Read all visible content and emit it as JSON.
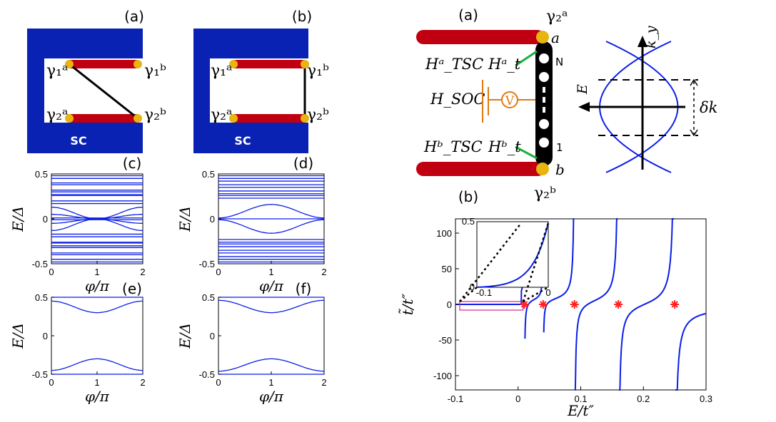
{
  "colors": {
    "superconductor": "#0a22b4",
    "wire": "#c00010",
    "majorana": "#e8b410",
    "curve": "#0a1ee6",
    "zero_marker": "#ff2020",
    "soc_circuit": "#e07a10",
    "coupling": "#1bb040",
    "inset_box": "#e0208a"
  },
  "left": {
    "panel_a": {
      "label": "(a)",
      "sc_label": "SC",
      "gammas": [
        "γ₁ᵃ",
        "γ₁ᵇ",
        "γ₂ᵃ",
        "γ₂ᵇ"
      ],
      "connection": "diagonal"
    },
    "panel_b": {
      "label": "(b)",
      "sc_label": "SC",
      "gammas": [
        "γ₁ᵃ",
        "γ₁ᵇ",
        "γ₂ᵃ",
        "γ₂ᵇ"
      ],
      "connection": "vertical"
    },
    "panel_c": {
      "label": "(c)"
    },
    "panel_d": {
      "label": "(d)"
    },
    "panel_e": {
      "label": "(e)"
    },
    "panel_f": {
      "label": "(f)"
    }
  },
  "right": {
    "schematic": {
      "label": "(a)",
      "gamma_top": "γ₂ᵃ",
      "gamma_bottom": "γ₂ᵇ",
      "end_top": "a",
      "end_bottom": "b",
      "site_top": "N",
      "site_bottom": "1",
      "H_tsc_a": "Hᵃ_TSC",
      "H_t_a": "Hᵃ_t",
      "H_soc": "H_SOC",
      "H_tsc_b": "Hᵇ_TSC",
      "H_t_b": "Hᵇ_t",
      "voltage_symbol": "V",
      "band_axis_y": "k_y",
      "band_axis_e": "E",
      "delta_k": "δk"
    },
    "plot_b_label": "(b)"
  },
  "chart_data": [
    {
      "id": "c",
      "type": "line",
      "xlabel": "φ/π",
      "ylabel": "E/Δ",
      "x_ticks": [
        "0",
        "1",
        "2"
      ],
      "y_ticks": [
        "0.5",
        "0",
        "-0.5"
      ],
      "xlim": [
        0,
        2
      ],
      "ylim": [
        -0.5,
        0.5
      ],
      "flat_levels": [
        0.48,
        0.45,
        0.4,
        0.38,
        0.32,
        0.3,
        0.27,
        0.26,
        0.2,
        0.17,
        0.01,
        -0.01,
        -0.17,
        -0.2,
        -0.26,
        -0.27,
        -0.3,
        -0.32,
        -0.38,
        -0.4,
        -0.45,
        -0.48
      ],
      "series": [
        {
          "values_at_phi0_1_2": [
            0.13,
            0.0,
            0.13
          ]
        },
        {
          "values_at_phi0_1_2": [
            -0.13,
            0.0,
            -0.13
          ]
        },
        {
          "values_at_phi0_1_2": [
            0.05,
            0.0,
            0.05
          ]
        },
        {
          "values_at_phi0_1_2": [
            -0.05,
            0.0,
            -0.05
          ]
        }
      ]
    },
    {
      "id": "d",
      "type": "line",
      "xlabel": "φ/π",
      "ylabel": "E/Δ",
      "x_ticks": [
        "0",
        "1",
        "2"
      ],
      "y_ticks": [
        "0.5",
        "0",
        "-0.5"
      ],
      "xlim": [
        0,
        2
      ],
      "ylim": [
        -0.5,
        0.5
      ],
      "flat_levels": [
        0.48,
        0.45,
        0.42,
        0.38,
        0.35,
        0.31,
        0.28,
        0.26,
        0.23,
        0.0,
        -0.23,
        -0.26,
        -0.28,
        -0.31,
        -0.35,
        -0.38,
        -0.42,
        -0.45,
        -0.48
      ],
      "series": [
        {
          "values_at_phi0_1_2": [
            0.01,
            0.16,
            0.01
          ]
        },
        {
          "values_at_phi0_1_2": [
            -0.01,
            -0.16,
            -0.01
          ]
        }
      ]
    },
    {
      "id": "e",
      "type": "line",
      "xlabel": "φ/π",
      "ylabel": "E/Δ",
      "x_ticks": [
        "0",
        "1",
        "2"
      ],
      "y_ticks": [
        "0.5",
        "0",
        "-0.5"
      ],
      "xlim": [
        0,
        2
      ],
      "ylim": [
        -0.5,
        0.5
      ],
      "flat_levels": [
        0.5,
        -0.5
      ],
      "series": [
        {
          "values_at_phi0_1_2": [
            0.45,
            0.3,
            0.45
          ]
        },
        {
          "values_at_phi0_1_2": [
            -0.45,
            -0.3,
            -0.45
          ]
        }
      ]
    },
    {
      "id": "f",
      "type": "line",
      "xlabel": "φ/π",
      "ylabel": "E/Δ",
      "x_ticks": [
        "0",
        "1",
        "2"
      ],
      "y_ticks": [
        "0.5",
        "0",
        "-0.5"
      ],
      "xlim": [
        0,
        2
      ],
      "ylim": [
        -0.5,
        0.5
      ],
      "flat_levels": [
        0.5,
        -0.5
      ],
      "series": [
        {
          "values_at_phi0_1_2": [
            0.46,
            0.3,
            0.46
          ]
        },
        {
          "values_at_phi0_1_2": [
            -0.46,
            -0.3,
            -0.46
          ]
        }
      ]
    },
    {
      "id": "right-b",
      "type": "line",
      "xlabel": "E/t″",
      "ylabel": "t̃/t″",
      "x_ticks": [
        "-0.1",
        "0",
        "0.1",
        "0.2",
        "0.3"
      ],
      "y_ticks": [
        "100",
        "50",
        "0",
        "-50",
        "-100"
      ],
      "xlim": [
        -0.1,
        0.3
      ],
      "ylim": [
        -120,
        120
      ],
      "zero_markers_x": [
        0.01,
        0.04,
        0.09,
        0.16,
        0.25
      ],
      "resonances": [
        {
          "x": 0.01,
          "peak_before": 10,
          "dip_after": -18
        },
        {
          "x": 0.04,
          "peak_before": 15,
          "dip_after": -8
        },
        {
          "x": 0.09,
          "peak_before": 45,
          "dip_after": -45
        },
        {
          "x": 0.16,
          "peak_before": 78,
          "dip_after": -78
        },
        {
          "x": 0.25,
          "peak_before": 117,
          "dip_after": -118
        }
      ],
      "inset": {
        "x_ticks": [
          "-0.1",
          "0"
        ],
        "y_ticks": [
          "0.5",
          "0"
        ],
        "xlim": [
          -0.1,
          0
        ],
        "ylim": [
          0,
          0.5
        ]
      }
    }
  ]
}
